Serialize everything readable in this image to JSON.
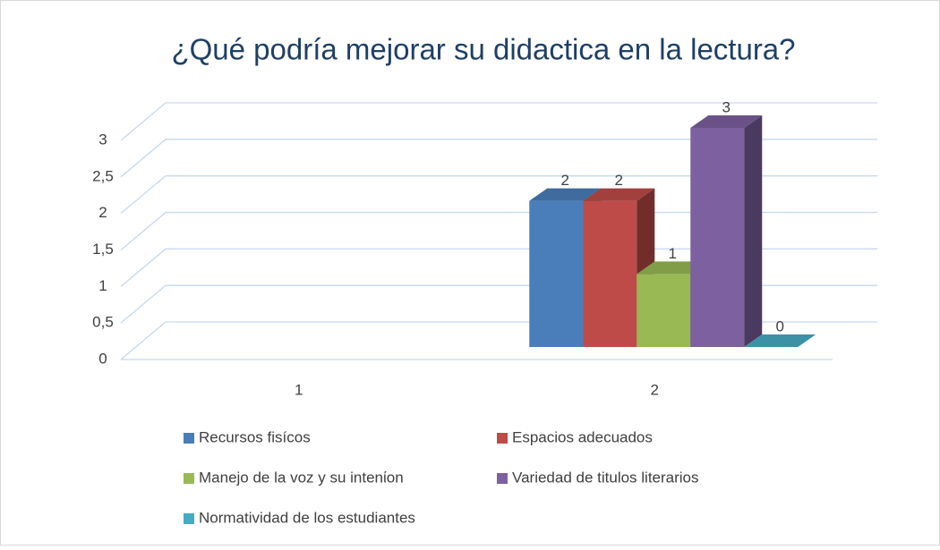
{
  "chart_data": {
    "type": "bar3d",
    "title": "¿Qué podría mejorar su didactica en la lectura?",
    "categories": [
      "1",
      "2"
    ],
    "series": [
      {
        "name": "Recursos fisícos",
        "color": "#4a7ebb",
        "values": [
          null,
          2
        ]
      },
      {
        "name": "Espacios adecuados",
        "color": "#be4b48",
        "values": [
          null,
          2
        ]
      },
      {
        "name": "Manejo de la voz y su intenίon",
        "color": "#98b954",
        "values": [
          null,
          1
        ]
      },
      {
        "name": "Variedad de titulos literarios",
        "color": "#7d60a0",
        "values": [
          null,
          3
        ]
      },
      {
        "name": "Normatividad de los estudiantes",
        "color": "#46aac5",
        "values": [
          null,
          0
        ]
      }
    ],
    "ylim": [
      0,
      3
    ],
    "yticks": [
      0,
      {
        "value": 0.5,
        "label": "0,5"
      },
      1,
      {
        "value": 1.5,
        "label": "1,5"
      },
      2,
      {
        "value": 2.5,
        "label": "2,5"
      },
      3
    ],
    "grid": true,
    "legend": "bottom",
    "data_labels": true
  }
}
